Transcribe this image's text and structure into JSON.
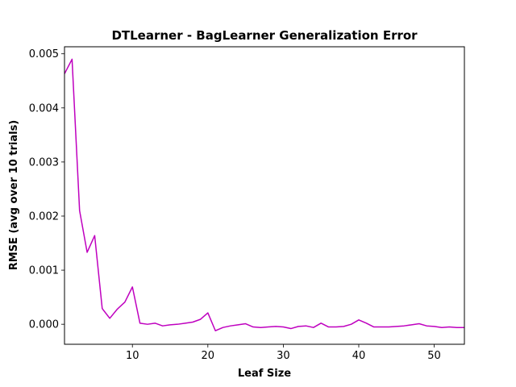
{
  "chart_data": {
    "type": "line",
    "title": "DTLearner - BagLearner Generalization Error",
    "xlabel": "Leaf Size",
    "ylabel": "RMSE (avg over 10 trials)",
    "xlim": [
      1,
      54
    ],
    "ylim": [
      -0.00037,
      0.00513
    ],
    "xticks": [
      10,
      20,
      30,
      40,
      50
    ],
    "yticks": [
      0.0,
      0.001,
      0.002,
      0.003,
      0.004,
      0.005
    ],
    "ytick_labels": [
      "0.000",
      "0.001",
      "0.002",
      "0.003",
      "0.004",
      "0.005"
    ],
    "grid": false,
    "series": [
      {
        "color": "#bf00bf",
        "x": [
          1,
          2,
          3,
          4,
          5,
          6,
          7,
          8,
          9,
          10,
          11,
          12,
          13,
          14,
          15,
          16,
          17,
          18,
          19,
          20,
          21,
          22,
          23,
          24,
          25,
          26,
          27,
          28,
          29,
          30,
          31,
          32,
          33,
          34,
          35,
          36,
          37,
          38,
          39,
          40,
          41,
          42,
          43,
          44,
          45,
          46,
          47,
          48,
          49,
          50,
          51,
          52,
          53,
          54
        ],
        "y": [
          0.00463,
          0.0049,
          0.0021,
          0.00133,
          0.00164,
          0.00029,
          0.00011,
          0.00028,
          0.00041,
          0.00069,
          2e-05,
          0.0,
          2e-05,
          -3e-05,
          -1e-05,
          0.0,
          2e-05,
          4e-05,
          9e-05,
          0.00021,
          -0.00012,
          -6e-05,
          -3e-05,
          -1e-05,
          1e-05,
          -5e-05,
          -6e-05,
          -5e-05,
          -4e-05,
          -5e-05,
          -8e-05,
          -4e-05,
          -3e-05,
          -6e-05,
          2e-05,
          -5e-05,
          -5e-05,
          -4e-05,
          0.0,
          8e-05,
          2e-05,
          -5e-05,
          -5e-05,
          -5e-05,
          -4e-05,
          -3e-05,
          -1e-05,
          1e-05,
          -3e-05,
          -4e-05,
          -6e-05,
          -5e-05,
          -6e-05,
          -6e-05
        ]
      }
    ]
  }
}
